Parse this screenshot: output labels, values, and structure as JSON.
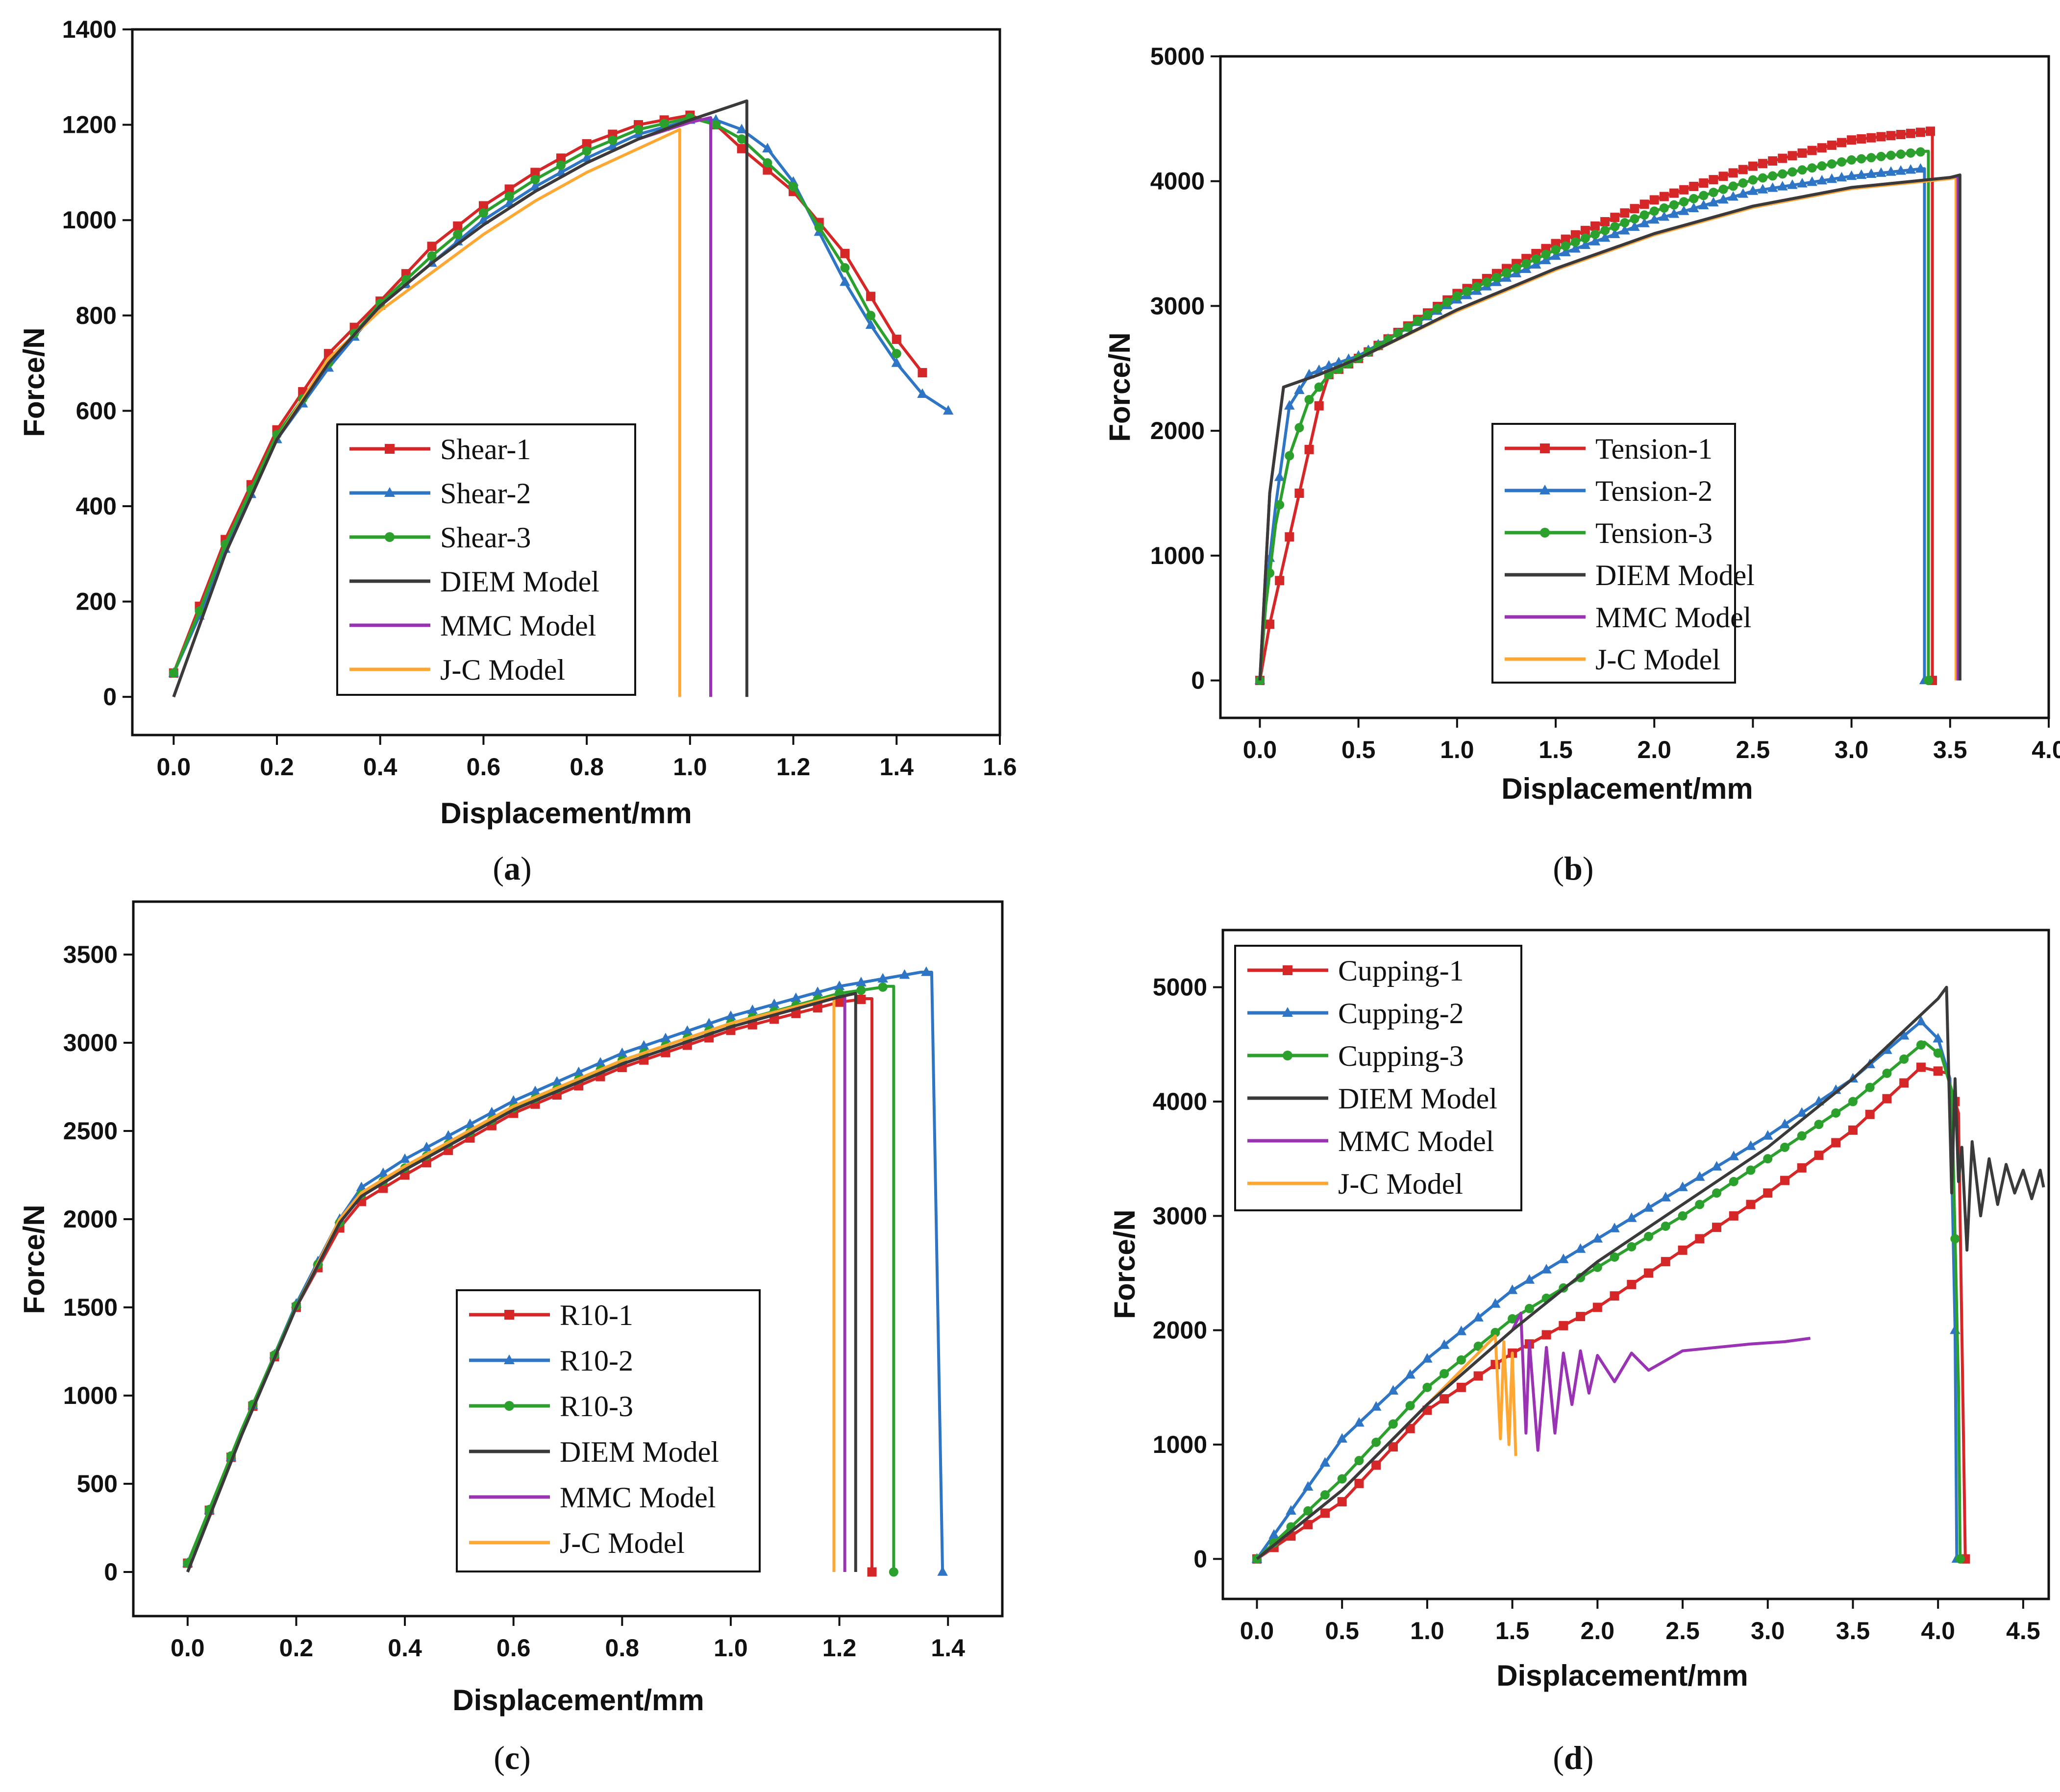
{
  "colors": {
    "red": "#d62728",
    "blue": "#2e75c5",
    "green": "#2ca02c",
    "black": "#3a3a3a",
    "purple": "#9933b3",
    "orange": "#ffa733"
  },
  "chart_data": [
    {
      "type": "line",
      "caption_letter": "a",
      "xlabel": "Displacement/mm",
      "ylabel": "Force/N",
      "xlim": [
        -0.08,
        1.6
      ],
      "ylim": [
        -80,
        1400
      ],
      "xticks": [
        "0.0",
        "0.2",
        "0.4",
        "0.6",
        "0.8",
        "1.0",
        "1.2",
        "1.4",
        "1.6"
      ],
      "yticks": [
        "0",
        "200",
        "400",
        "600",
        "800",
        "1000",
        "1200",
        "1400"
      ],
      "legend_position": "bottom-center",
      "series": [
        {
          "name": "Shear-1",
          "color": "#d62728",
          "marker": "square",
          "marker_step": 0.05,
          "x": [
            0,
            0.05,
            0.1,
            0.2,
            0.3,
            0.4,
            0.5,
            0.6,
            0.7,
            0.8,
            0.9,
            1.0,
            1.05,
            1.1,
            1.2,
            1.3,
            1.35,
            1.4,
            1.45
          ],
          "y": [
            50,
            190,
            330,
            560,
            720,
            830,
            945,
            1030,
            1100,
            1160,
            1200,
            1220,
            1200,
            1150,
            1060,
            930,
            840,
            750,
            680
          ]
        },
        {
          "name": "Shear-2",
          "color": "#2e75c5",
          "marker": "triangle",
          "marker_step": 0.05,
          "x": [
            0,
            0.05,
            0.1,
            0.2,
            0.3,
            0.4,
            0.5,
            0.6,
            0.7,
            0.8,
            0.9,
            1.0,
            1.05,
            1.1,
            1.15,
            1.2,
            1.3,
            1.35,
            1.4,
            1.45,
            1.5
          ],
          "y": [
            50,
            170,
            310,
            540,
            690,
            820,
            910,
            1000,
            1070,
            1130,
            1180,
            1210,
            1210,
            1190,
            1150,
            1080,
            870,
            780,
            700,
            635,
            600
          ]
        },
        {
          "name": "Shear-3",
          "color": "#2ca02c",
          "marker": "circle",
          "marker_step": 0.05,
          "x": [
            0,
            0.05,
            0.1,
            0.2,
            0.3,
            0.4,
            0.5,
            0.6,
            0.7,
            0.8,
            0.9,
            1.0,
            1.05,
            1.1,
            1.2,
            1.3,
            1.35,
            1.4
          ],
          "y": [
            50,
            180,
            320,
            550,
            700,
            825,
            925,
            1015,
            1085,
            1145,
            1190,
            1215,
            1200,
            1170,
            1070,
            900,
            800,
            720
          ]
        },
        {
          "name": "DIEM Model",
          "color": "#3a3a3a",
          "marker": "none",
          "x": [
            0,
            0.1,
            0.2,
            0.3,
            0.4,
            0.5,
            0.6,
            0.7,
            0.8,
            0.9,
            1.0,
            1.11,
            1.11
          ],
          "y": [
            0,
            300,
            540,
            700,
            820,
            910,
            990,
            1060,
            1120,
            1170,
            1210,
            1250,
            0
          ]
        },
        {
          "name": "MMC Model",
          "color": "#9933b3",
          "marker": "none",
          "x": [
            0,
            0.1,
            0.2,
            0.3,
            0.4,
            0.5,
            0.6,
            0.7,
            0.8,
            0.9,
            1.0,
            1.04,
            1.04
          ],
          "y": [
            0,
            300,
            540,
            700,
            820,
            910,
            990,
            1060,
            1120,
            1170,
            1205,
            1215,
            0
          ]
        },
        {
          "name": "J-C Model",
          "color": "#ffa733",
          "marker": "none",
          "x": [
            0,
            0.1,
            0.2,
            0.3,
            0.4,
            0.5,
            0.6,
            0.7,
            0.8,
            0.9,
            0.98,
            0.98
          ],
          "y": [
            0,
            300,
            540,
            710,
            810,
            890,
            970,
            1040,
            1100,
            1150,
            1190,
            0
          ]
        }
      ]
    },
    {
      "type": "line",
      "caption_letter": "b",
      "xlabel": "Displacement/mm",
      "ylabel": "Force/N",
      "xlim": [
        -0.2,
        4.0
      ],
      "ylim": [
        -300,
        5000
      ],
      "xticks": [
        "0.0",
        "0.5",
        "1.0",
        "1.5",
        "2.0",
        "2.5",
        "3.0",
        "3.5",
        "4.0"
      ],
      "yticks": [
        "0",
        "1000",
        "2000",
        "3000",
        "4000",
        "5000"
      ],
      "legend_position": "bottom-center",
      "series": [
        {
          "name": "Tension-1",
          "color": "#d62728",
          "marker": "square",
          "marker_step": 0.05,
          "x": [
            0,
            0.05,
            0.1,
            0.2,
            0.3,
            0.35,
            0.5,
            1.0,
            1.5,
            2.0,
            2.5,
            3.0,
            3.4,
            3.41,
            3.41
          ],
          "y": [
            0,
            450,
            800,
            1500,
            2200,
            2450,
            2580,
            3100,
            3500,
            3850,
            4120,
            4330,
            4400,
            4400,
            0
          ]
        },
        {
          "name": "Tension-2",
          "color": "#2e75c5",
          "marker": "triangle",
          "marker_step": 0.05,
          "x": [
            0,
            0.03,
            0.08,
            0.15,
            0.25,
            0.35,
            0.5,
            1.0,
            1.5,
            2.0,
            2.5,
            3.0,
            3.36,
            3.37,
            3.37
          ],
          "y": [
            0,
            700,
            1400,
            2200,
            2450,
            2520,
            2600,
            3050,
            3400,
            3690,
            3920,
            4040,
            4100,
            4100,
            0
          ]
        },
        {
          "name": "Tension-3",
          "color": "#2ca02c",
          "marker": "circle",
          "marker_step": 0.05,
          "x": [
            0,
            0.03,
            0.08,
            0.15,
            0.25,
            0.35,
            0.5,
            1.0,
            1.5,
            2.0,
            2.5,
            3.0,
            3.38,
            3.39,
            3.39
          ],
          "y": [
            0,
            600,
            1250,
            1800,
            2250,
            2450,
            2580,
            3080,
            3450,
            3760,
            4010,
            4170,
            4240,
            4240,
            0
          ]
        },
        {
          "name": "DIEM Model",
          "color": "#3a3a3a",
          "marker": "none",
          "x": [
            0,
            0.05,
            0.12,
            0.3,
            0.5,
            1.0,
            1.5,
            2.0,
            2.5,
            3.0,
            3.5,
            3.55,
            3.55
          ],
          "y": [
            0,
            1500,
            2350,
            2450,
            2580,
            2970,
            3300,
            3580,
            3800,
            3950,
            4030,
            4050,
            0
          ]
        },
        {
          "name": "MMC Model",
          "color": "#9933b3",
          "marker": "none",
          "x": [
            0,
            0.05,
            0.12,
            0.3,
            0.5,
            1.0,
            1.5,
            2.0,
            2.5,
            3.0,
            3.5,
            3.54,
            3.54
          ],
          "y": [
            0,
            1500,
            2350,
            2450,
            2580,
            2970,
            3300,
            3580,
            3800,
            3950,
            4030,
            4040,
            0
          ]
        },
        {
          "name": "J-C Model",
          "color": "#ffa733",
          "marker": "none",
          "x": [
            0,
            0.05,
            0.12,
            0.3,
            0.5,
            1.0,
            1.5,
            2.0,
            2.5,
            3.0,
            3.5,
            3.53,
            3.53
          ],
          "y": [
            0,
            1500,
            2350,
            2450,
            2580,
            2960,
            3290,
            3570,
            3790,
            3940,
            4020,
            4030,
            0
          ]
        }
      ]
    },
    {
      "type": "line",
      "caption_letter": "c",
      "xlabel": "Displacement/mm",
      "ylabel": "Force/N",
      "xlim": [
        -0.1,
        1.5
      ],
      "ylim": [
        -250,
        3800
      ],
      "xticks": [
        "0.0",
        "0.2",
        "0.4",
        "0.6",
        "0.8",
        "1.0",
        "1.2",
        "1.4"
      ],
      "yticks": [
        "0",
        "500",
        "1000",
        "1500",
        "2000",
        "2500",
        "3000",
        "3500"
      ],
      "legend_position": "bottom-center",
      "series": [
        {
          "name": "R10-1",
          "color": "#d62728",
          "marker": "square",
          "marker_step": 0.04,
          "x": [
            0,
            0.1,
            0.2,
            0.28,
            0.32,
            0.4,
            0.6,
            0.8,
            1.0,
            1.2,
            1.25,
            1.26,
            1.26
          ],
          "y": [
            50,
            800,
            1500,
            1950,
            2100,
            2250,
            2600,
            2860,
            3070,
            3230,
            3250,
            3250,
            0
          ]
        },
        {
          "name": "R10-2",
          "color": "#2e75c5",
          "marker": "triangle",
          "marker_step": 0.04,
          "x": [
            0,
            0.1,
            0.2,
            0.28,
            0.32,
            0.4,
            0.6,
            0.8,
            1.0,
            1.2,
            1.35,
            1.37,
            1.39
          ],
          "y": [
            50,
            800,
            1520,
            2000,
            2180,
            2340,
            2670,
            2940,
            3150,
            3320,
            3400,
            3400,
            0
          ]
        },
        {
          "name": "R10-3",
          "color": "#2ca02c",
          "marker": "circle",
          "marker_step": 0.04,
          "x": [
            0,
            0.1,
            0.2,
            0.28,
            0.32,
            0.4,
            0.6,
            0.8,
            1.0,
            1.2,
            1.29,
            1.3,
            1.3
          ],
          "y": [
            50,
            810,
            1510,
            1980,
            2140,
            2290,
            2630,
            2900,
            3110,
            3280,
            3320,
            3320,
            0
          ]
        },
        {
          "name": "DIEM Model",
          "color": "#3a3a3a",
          "marker": "none",
          "x": [
            0,
            0.1,
            0.2,
            0.28,
            0.32,
            0.4,
            0.6,
            0.8,
            1.0,
            1.2,
            1.23,
            1.23
          ],
          "y": [
            0,
            780,
            1500,
            1980,
            2130,
            2280,
            2620,
            2880,
            3090,
            3260,
            3280,
            0
          ]
        },
        {
          "name": "MMC Model",
          "color": "#9933b3",
          "marker": "none",
          "x": [
            0,
            0.1,
            0.2,
            0.28,
            0.32,
            0.4,
            0.6,
            0.8,
            1.0,
            1.2,
            1.21,
            1.21
          ],
          "y": [
            0,
            780,
            1500,
            1980,
            2130,
            2280,
            2620,
            2880,
            3090,
            3260,
            3265,
            0
          ]
        },
        {
          "name": "J-C Model",
          "color": "#ffa733",
          "marker": "none",
          "x": [
            0,
            0.1,
            0.2,
            0.28,
            0.32,
            0.4,
            0.6,
            0.8,
            1.0,
            1.19,
            1.19
          ],
          "y": [
            0,
            780,
            1500,
            2000,
            2150,
            2300,
            2640,
            2900,
            3110,
            3260,
            0
          ]
        }
      ]
    },
    {
      "type": "line",
      "caption_letter": "d",
      "xlabel": "Displacement/mm",
      "ylabel": "Force/N",
      "xlim": [
        -0.2,
        4.65
      ],
      "ylim": [
        -350,
        5500
      ],
      "xticks": [
        "0.0",
        "0.5",
        "1.0",
        "1.5",
        "2.0",
        "2.5",
        "3.0",
        "3.5",
        "4.0",
        "4.5"
      ],
      "yticks": [
        "0",
        "1000",
        "2000",
        "3000",
        "4000",
        "5000"
      ],
      "legend_position": "top-left",
      "series": [
        {
          "name": "Cupping-1",
          "color": "#d62728",
          "marker": "square",
          "marker_step": 0.1,
          "x": [
            0,
            0.5,
            1.0,
            1.5,
            2.0,
            2.5,
            3.0,
            3.5,
            3.9,
            4.05,
            4.12,
            4.15,
            4.16
          ],
          "y": [
            0,
            500,
            1300,
            1800,
            2200,
            2700,
            3200,
            3750,
            4300,
            4250,
            3900,
            1000,
            0
          ]
        },
        {
          "name": "Cupping-2",
          "color": "#2e75c5",
          "marker": "triangle",
          "marker_step": 0.1,
          "x": [
            0,
            0.5,
            1.0,
            1.5,
            2.0,
            2.5,
            3.0,
            3.5,
            3.9,
            4.0,
            4.07,
            4.1,
            4.11
          ],
          "y": [
            0,
            1050,
            1750,
            2350,
            2800,
            3250,
            3700,
            4200,
            4700,
            4550,
            4200,
            2000,
            0
          ]
        },
        {
          "name": "Cupping-3",
          "color": "#2ca02c",
          "marker": "circle",
          "marker_step": 0.1,
          "x": [
            0,
            0.5,
            1.0,
            1.5,
            2.0,
            2.5,
            3.0,
            3.5,
            3.92,
            4.02,
            4.08,
            4.12,
            4.13
          ],
          "y": [
            0,
            700,
            1500,
            2100,
            2550,
            3000,
            3500,
            4000,
            4520,
            4400,
            4100,
            1500,
            0
          ]
        },
        {
          "name": "DIEM Model",
          "color": "#3a3a3a",
          "marker": "none",
          "x": [
            0,
            0.5,
            1.0,
            1.5,
            2.0,
            2.5,
            3.0,
            3.5,
            4.0,
            4.05,
            4.08,
            4.1,
            4.12,
            4.14,
            4.17,
            4.2,
            4.25,
            4.3,
            4.35,
            4.4,
            4.45,
            4.5,
            4.55,
            4.6,
            4.62
          ],
          "y": [
            0,
            600,
            1350,
            2000,
            2600,
            3100,
            3600,
            4200,
            4900,
            5000,
            3200,
            4200,
            3300,
            3600,
            2700,
            3650,
            3000,
            3500,
            3100,
            3450,
            3200,
            3400,
            3150,
            3400,
            3250
          ]
        },
        {
          "name": "MMC Model",
          "color": "#9933b3",
          "marker": "none",
          "x": [
            0,
            0.5,
            1.0,
            1.5,
            1.55,
            1.58,
            1.6,
            1.65,
            1.7,
            1.75,
            1.8,
            1.85,
            1.9,
            1.95,
            2.0,
            2.1,
            2.2,
            2.3,
            2.5,
            2.7,
            2.9,
            3.1,
            3.25
          ],
          "y": [
            0,
            600,
            1350,
            2000,
            2150,
            1100,
            1900,
            950,
            1850,
            1100,
            1800,
            1350,
            1820,
            1450,
            1780,
            1550,
            1800,
            1650,
            1820,
            1850,
            1880,
            1900,
            1930
          ]
        },
        {
          "name": "J-C Model",
          "color": "#ffa733",
          "marker": "none",
          "x": [
            0,
            0.5,
            1.0,
            1.4,
            1.43,
            1.45,
            1.48,
            1.5,
            1.52
          ],
          "y": [
            0,
            600,
            1350,
            1950,
            1050,
            1900,
            1000,
            1800,
            900
          ]
        }
      ]
    }
  ]
}
